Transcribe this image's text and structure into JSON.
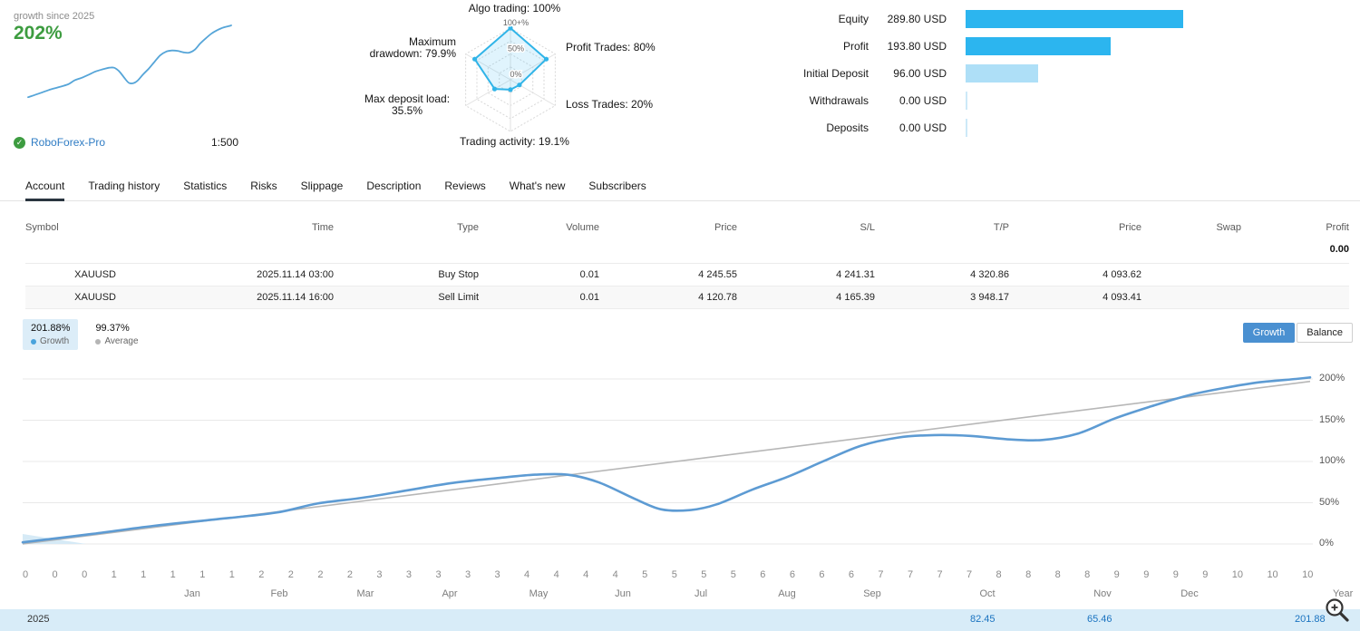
{
  "header": {
    "growth": {
      "caption": "growth since 2025",
      "value": "202%",
      "broker": "RoboForex-Pro",
      "leverage": "1:500"
    },
    "radar": {
      "axes": [
        {
          "label": "Algo trading: 100%",
          "value": 100
        },
        {
          "label": "Profit Trades: 80%",
          "value": 80
        },
        {
          "label": "Loss Trades: 20%",
          "value": 20
        },
        {
          "label": "Trading activity: 19.1%",
          "value": 19.1
        },
        {
          "label": "Max deposit load: 35.5%",
          "value": 35.5
        },
        {
          "label": "Maximum drawdown: 79.9%",
          "value": 79.9
        }
      ],
      "rings": [
        {
          "label": "0%",
          "f": 0
        },
        {
          "label": "50%",
          "f": 0.5
        },
        {
          "label": "100+%",
          "f": 1
        }
      ]
    },
    "stats": [
      {
        "label": "Equity",
        "display": "289.80 USD",
        "value": 289.8,
        "color": "#2cb5ef"
      },
      {
        "label": "Profit",
        "display": "193.80 USD",
        "value": 193.8,
        "color": "#2cb5ef"
      },
      {
        "label": "Initial Deposit",
        "display": "96.00 USD",
        "value": 96.0,
        "color": "#aedff7"
      },
      {
        "label": "Withdrawals",
        "display": "0.00 USD",
        "value": 0,
        "color": "#cde9f8"
      },
      {
        "label": "Deposits",
        "display": "0.00 USD",
        "value": 0,
        "color": "#cde9f8"
      }
    ]
  },
  "tabs": [
    {
      "label": "Account",
      "active": true
    },
    {
      "label": "Trading history",
      "active": false
    },
    {
      "label": "Statistics",
      "active": false
    },
    {
      "label": "Risks",
      "active": false
    },
    {
      "label": "Slippage",
      "active": false
    },
    {
      "label": "Description",
      "active": false
    },
    {
      "label": "Reviews",
      "active": false
    },
    {
      "label": "What's new",
      "active": false
    },
    {
      "label": "Subscribers",
      "active": false
    }
  ],
  "orders": {
    "columns": [
      "Symbol",
      "Time",
      "Type",
      "Volume",
      "Price",
      "S/L",
      "T/P",
      "Price",
      "Swap",
      "Profit"
    ],
    "floating_profit": "0.00",
    "rows": [
      [
        "XAUUSD",
        "2025.11.14 03:00",
        "Buy Stop",
        "0.01",
        "4 245.55",
        "4 241.31",
        "4 320.86",
        "4 093.62",
        "",
        ""
      ],
      [
        "XAUUSD",
        "2025.11.14 16:00",
        "Sell Limit",
        "0.01",
        "4 120.78",
        "4 165.39",
        "3 948.17",
        "4 093.41",
        "",
        ""
      ]
    ]
  },
  "chart_section": {
    "legend": [
      {
        "value": "201.88%",
        "label": "Growth",
        "color": "#4aa3dc",
        "active": true
      },
      {
        "value": "99.37%",
        "label": "Average",
        "color": "#b5b5b5",
        "active": false
      }
    ],
    "view_buttons": [
      {
        "label": "Growth",
        "active": true
      },
      {
        "label": "Balance",
        "active": false
      }
    ]
  },
  "chart_data": {
    "type": "line",
    "title": "Account growth since 2025, %",
    "ylim": [
      0,
      220
    ],
    "y_grid": [
      0,
      50,
      100,
      150,
      200
    ],
    "series": [
      {
        "name": "Growth",
        "color": "#5d9bd3",
        "points": [
          [
            0,
            2
          ],
          [
            0.053,
            12
          ],
          [
            0.102,
            22
          ],
          [
            0.151,
            30
          ],
          [
            0.197,
            38
          ],
          [
            0.229,
            49
          ],
          [
            0.264,
            56
          ],
          [
            0.299,
            65
          ],
          [
            0.334,
            74
          ],
          [
            0.37,
            80
          ],
          [
            0.398,
            84
          ],
          [
            0.423,
            84
          ],
          [
            0.447,
            75
          ],
          [
            0.475,
            55
          ],
          [
            0.496,
            42
          ],
          [
            0.518,
            41
          ],
          [
            0.539,
            48
          ],
          [
            0.567,
            66
          ],
          [
            0.595,
            82
          ],
          [
            0.623,
            101
          ],
          [
            0.651,
            119
          ],
          [
            0.68,
            129
          ],
          [
            0.708,
            132
          ],
          [
            0.736,
            131
          ],
          [
            0.764,
            127
          ],
          [
            0.792,
            126
          ],
          [
            0.82,
            134
          ],
          [
            0.848,
            152
          ],
          [
            0.877,
            167
          ],
          [
            0.905,
            180
          ],
          [
            0.933,
            189
          ],
          [
            0.961,
            196
          ],
          [
            0.989,
            200
          ],
          [
            1,
            201.88
          ]
        ]
      },
      {
        "name": "Average",
        "color": "#b7b7b7",
        "points": [
          [
            0,
            0
          ],
          [
            1,
            197
          ]
        ]
      }
    ],
    "week_ticks": [
      "0",
      "0",
      "0",
      "1",
      "1",
      "1",
      "1",
      "1",
      "2",
      "2",
      "2",
      "2",
      "3",
      "3",
      "3",
      "3",
      "3",
      "4",
      "4",
      "4",
      "4",
      "5",
      "5",
      "5",
      "5",
      "6",
      "6",
      "6",
      "6",
      "7",
      "7",
      "7",
      "7",
      "8",
      "8",
      "8",
      "8",
      "9",
      "9",
      "9",
      "9",
      "10",
      "10",
      "10"
    ],
    "months": [
      {
        "label": "Jan",
        "x": 0.132
      },
      {
        "label": "Feb",
        "x": 0.199
      },
      {
        "label": "Mar",
        "x": 0.266
      },
      {
        "label": "Apr",
        "x": 0.332
      },
      {
        "label": "May",
        "x": 0.401
      },
      {
        "label": "Jun",
        "x": 0.466
      },
      {
        "label": "Jul",
        "x": 0.527
      },
      {
        "label": "Aug",
        "x": 0.594
      },
      {
        "label": "Sep",
        "x": 0.66
      },
      {
        "label": "Oct",
        "x": 0.749
      },
      {
        "label": "Nov",
        "x": 0.839
      },
      {
        "label": "Dec",
        "x": 0.906
      }
    ],
    "year_label": "Year",
    "timeline": {
      "year": "2025",
      "values": [
        {
          "text": "82.45",
          "x": 0.736
        },
        {
          "text": "65.46",
          "x": 0.827
        },
        {
          "text": "201.88",
          "x": 0.988
        }
      ]
    }
  }
}
